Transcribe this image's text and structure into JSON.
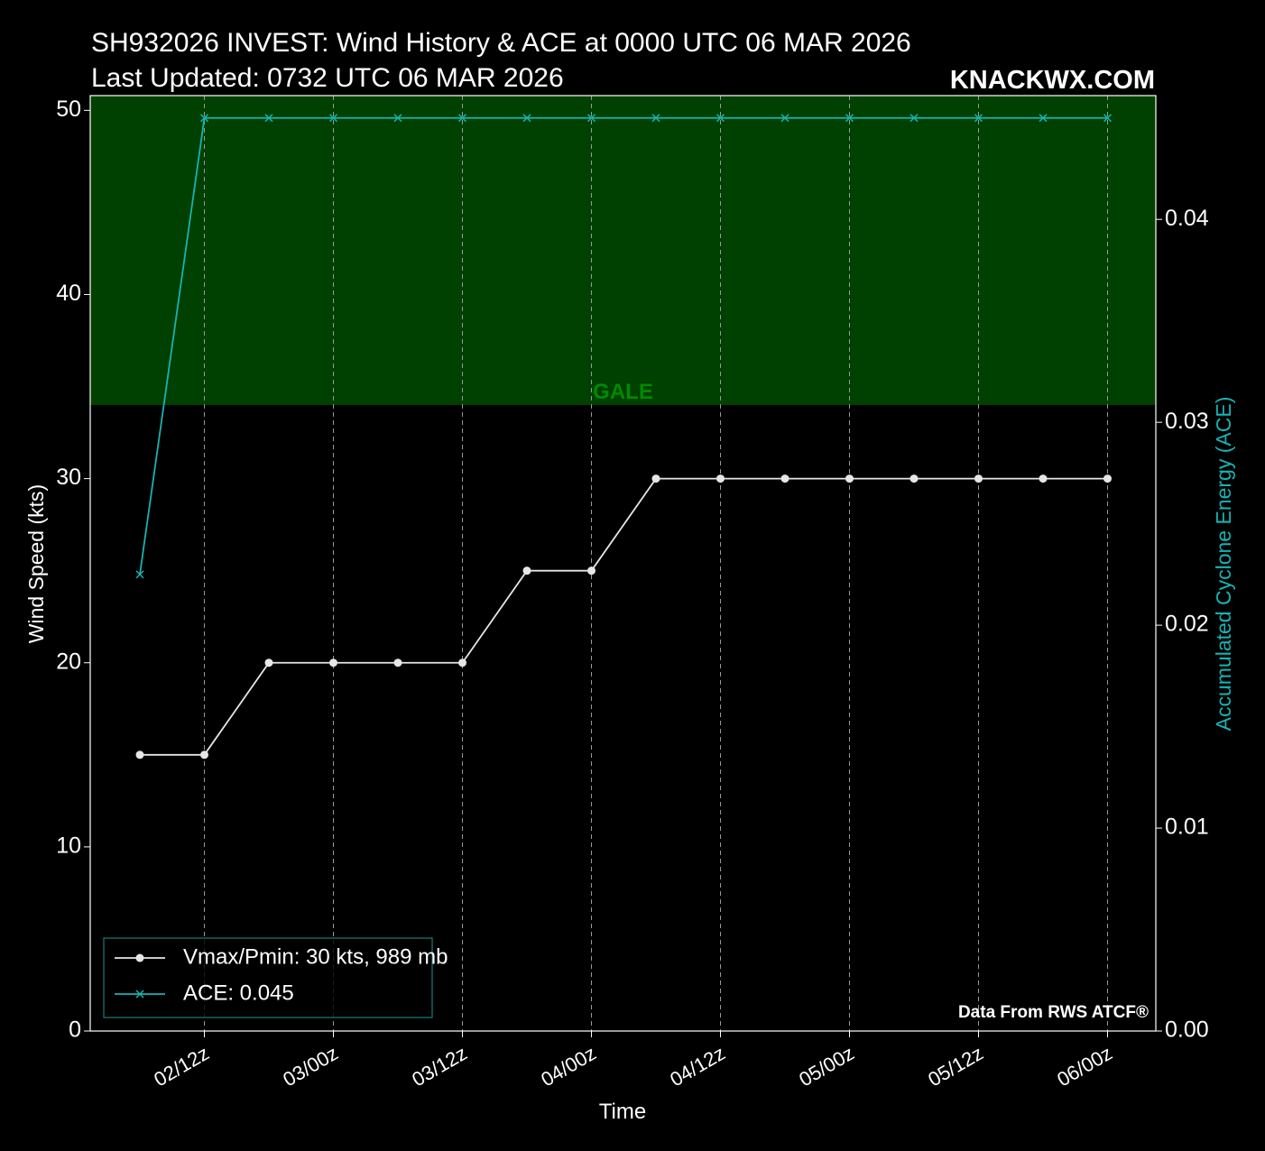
{
  "chart_data": {
    "type": "line",
    "title": "SH932026 INVEST: Wind History & ACE at 0000 UTC 06 MAR 2026",
    "subtitle": "Last Updated: 0732 UTC 06 MAR 2026",
    "brand": "KNACKWX.COM",
    "source": "Data From RWS ATCF®",
    "xlabel": "Time",
    "ylabel": "Wind Speed (kts)",
    "y2label": "Accumulated Cyclone Energy (ACE)",
    "x": [
      "02/06z",
      "02/12z",
      "02/18z",
      "03/00z",
      "03/06z",
      "03/12z",
      "03/18z",
      "04/00z",
      "04/06z",
      "04/12z",
      "04/18z",
      "05/00z",
      "05/06z",
      "05/12z",
      "05/18z",
      "06/00z"
    ],
    "xticks": [
      "02/12z",
      "03/00z",
      "03/12z",
      "04/00z",
      "04/12z",
      "05/00z",
      "05/12z",
      "06/00z"
    ],
    "ylim": [
      0,
      50.8
    ],
    "yticks": [
      0,
      10,
      20,
      30,
      40,
      50
    ],
    "y2lim": [
      0,
      0.0461
    ],
    "y2ticks": [
      {
        "value": 0,
        "label": "0.00"
      },
      0.01,
      0.02,
      0.03,
      0.04
    ],
    "grid": true,
    "legend": "lower left",
    "bands": [
      {
        "label": "GALE",
        "from": 34,
        "color": "#004000",
        "label_color": "#008a00"
      }
    ],
    "series": [
      {
        "name": "Vmax/Pmin: 30 kts, 989 mb",
        "color": "#e6e6e6",
        "marker": "o",
        "values": [
          15,
          15,
          20,
          20,
          20,
          20,
          25,
          25,
          30,
          30,
          30,
          30,
          30,
          30,
          30,
          30
        ]
      },
      {
        "name": "ACE: 0.045",
        "color": "#17b3b3",
        "marker": "x",
        "axis": "y2",
        "values": [
          0.0225,
          0.045,
          0.045,
          0.045,
          0.045,
          0.045,
          0.045,
          0.045,
          0.045,
          0.045,
          0.045,
          0.045,
          0.045,
          0.045,
          0.045,
          0.045
        ]
      }
    ]
  }
}
